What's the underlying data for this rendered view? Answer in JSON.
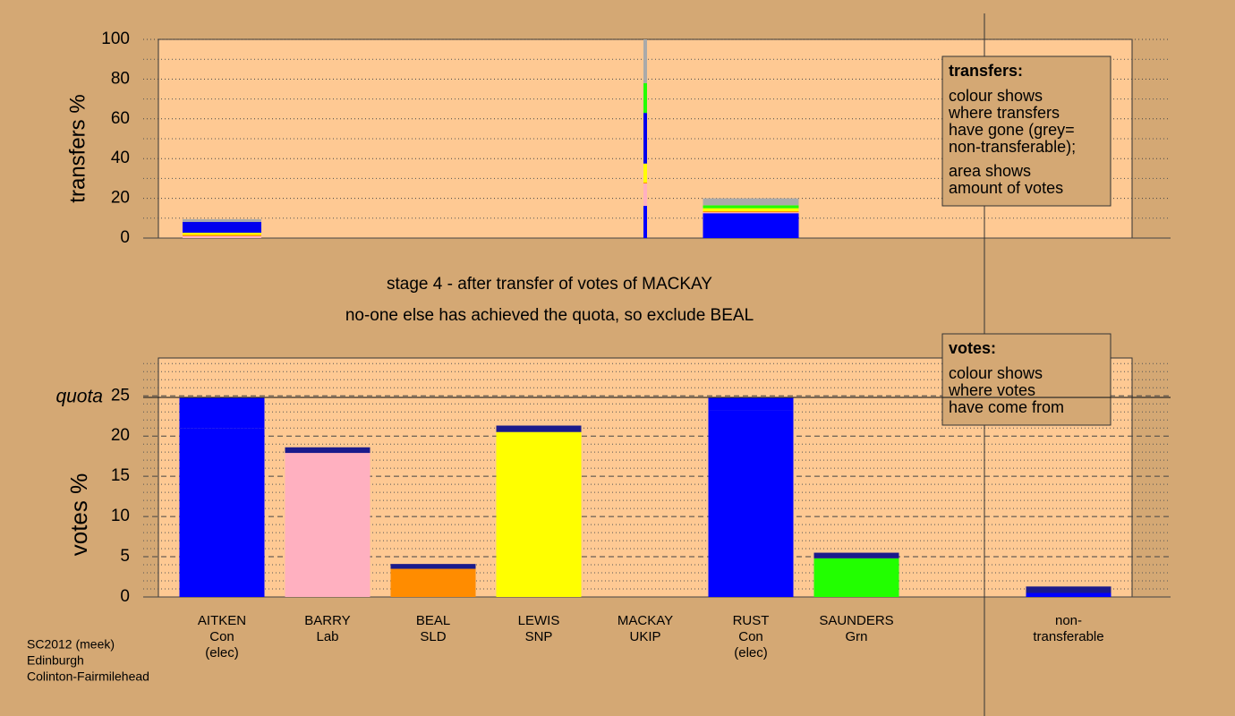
{
  "chart_data": [
    {
      "type": "stacked-bar",
      "y_label": "transfers %",
      "ylim": [
        0,
        100
      ],
      "yticks": [
        0,
        20,
        40,
        60,
        80,
        100
      ],
      "series": [
        {
          "color": "#0000ff",
          "values": [
            0,
            0,
            0,
            0,
            16.2,
            12.5,
            0,
            0
          ]
        },
        {
          "color": "#ffb0c0",
          "values": [
            1.0,
            0,
            0,
            0,
            11.3,
            0.5,
            0,
            0
          ]
        },
        {
          "color": "#ff8c00",
          "values": [
            0.6,
            0,
            0,
            0,
            0.5,
            0.5,
            0,
            0
          ]
        },
        {
          "color": "#ffff00",
          "values": [
            1.1,
            0,
            0,
            0,
            9.5,
            1.5,
            0,
            0
          ]
        },
        {
          "color": "#0000ee",
          "values": [
            5.4,
            0,
            0,
            0,
            25.5,
            0,
            0,
            0
          ]
        },
        {
          "color": "#22ff00",
          "values": [
            0,
            0,
            0,
            0,
            15.0,
            1.5,
            0,
            0
          ]
        },
        {
          "color": "#aaaaaa",
          "values": [
            1.4,
            0,
            0,
            0,
            22.0,
            3.5,
            0,
            0
          ]
        }
      ]
    },
    {
      "type": "stacked-bar",
      "y_label": "votes %",
      "ylim": [
        0,
        29.7
      ],
      "yticks": [
        0,
        5,
        10,
        15,
        20,
        25
      ],
      "quota": {
        "label": "quota",
        "value": 24.8
      },
      "categories": [
        [
          "AITKEN",
          "Con",
          "(elec)"
        ],
        [
          "BARRY",
          "Lab"
        ],
        [
          "BEAL",
          "SLD"
        ],
        [
          "LEWIS",
          "SNP"
        ],
        [
          "MACKAY",
          "UKIP"
        ],
        [
          "RUST",
          "Con",
          "(elec)"
        ],
        [
          "SAUNDERS",
          "Grn"
        ],
        [
          "non-",
          "transferable"
        ]
      ],
      "series": [
        {
          "colors": [
            "#0000ff",
            "#ffb0c0",
            "#ff8c00",
            "#ffff00",
            "#8000a0",
            "#0000ff",
            "#22ff00",
            "#aaaaaa"
          ],
          "values": [
            21.0,
            17.9,
            3.5,
            20.5,
            0,
            23.2,
            4.8,
            0
          ]
        },
        {
          "color": "#0000ff",
          "values": [
            3.8,
            0,
            0,
            0,
            0,
            1.6,
            0,
            0.5
          ]
        },
        {
          "color": "#1a1a8c",
          "values": [
            0,
            0.7,
            0.6,
            0.8,
            0,
            0,
            0.7,
            0.8
          ]
        }
      ]
    }
  ],
  "caption": [
    "stage 4 - after transfer of votes of MACKAY",
    "no-one else has achieved the quota, so exclude BEAL"
  ],
  "legend_transfers": {
    "title": "transfers:",
    "lines": [
      "colour shows",
      "where transfers",
      "have gone (grey=",
      "non-transferable);",
      "area shows",
      "amount of votes"
    ]
  },
  "legend_votes": {
    "title": "votes:",
    "lines": [
      "colour shows",
      "where votes",
      "have come from"
    ]
  },
  "source": [
    "SC2012 (meek)",
    "Edinburgh",
    "Colinton-Fairmilehead"
  ]
}
